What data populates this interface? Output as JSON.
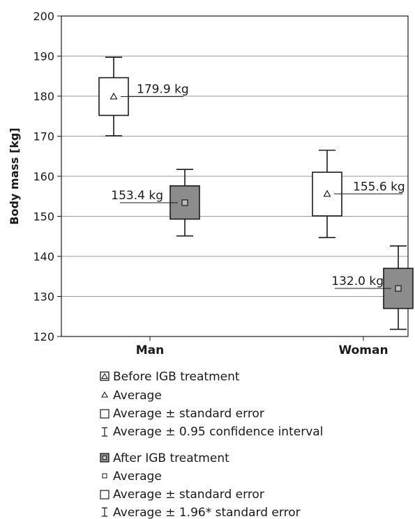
{
  "chart_data": {
    "type": "box",
    "ylabel": "Body mass [kg]",
    "ylim": [
      120,
      200
    ],
    "yticks": [
      120,
      130,
      140,
      150,
      160,
      170,
      180,
      190,
      200
    ],
    "categories": [
      "Man",
      "Woman"
    ],
    "grid": "horizontal",
    "series": [
      {
        "name": "Before IGB treatment",
        "color": "#ffffff",
        "marker": "triangle",
        "boxes": [
          {
            "category": "Man",
            "mean": 179.9,
            "se_low": 175.2,
            "se_high": 184.6,
            "ci_low": 170.1,
            "ci_high": 189.7,
            "label": "179.9 kg"
          },
          {
            "category": "Woman",
            "mean": 155.6,
            "se_low": 150.1,
            "se_high": 161.0,
            "ci_low": 144.7,
            "ci_high": 166.5,
            "label": "155.6 kg"
          }
        ]
      },
      {
        "name": "After IGB treatment",
        "color": "#8c8c8c",
        "marker": "square",
        "boxes": [
          {
            "category": "Man",
            "mean": 153.4,
            "se_low": 149.3,
            "se_high": 157.6,
            "ci_low": 145.1,
            "ci_high": 161.7,
            "label": "153.4 kg"
          },
          {
            "category": "Woman",
            "mean": 132.0,
            "se_low": 127.0,
            "se_high": 137.0,
            "ci_low": 121.8,
            "ci_high": 142.6,
            "label": "132.0 kg"
          }
        ]
      }
    ]
  },
  "legend": {
    "groups": [
      {
        "title": "Before IGB treatment",
        "items": [
          "Average",
          "Average ± standard error",
          "Average ± 0.95 confidence interval"
        ]
      },
      {
        "title": "After IGB treatment",
        "items": [
          "Average",
          "Average ± standard error",
          "Average ± 1.96* standard error"
        ]
      }
    ]
  }
}
